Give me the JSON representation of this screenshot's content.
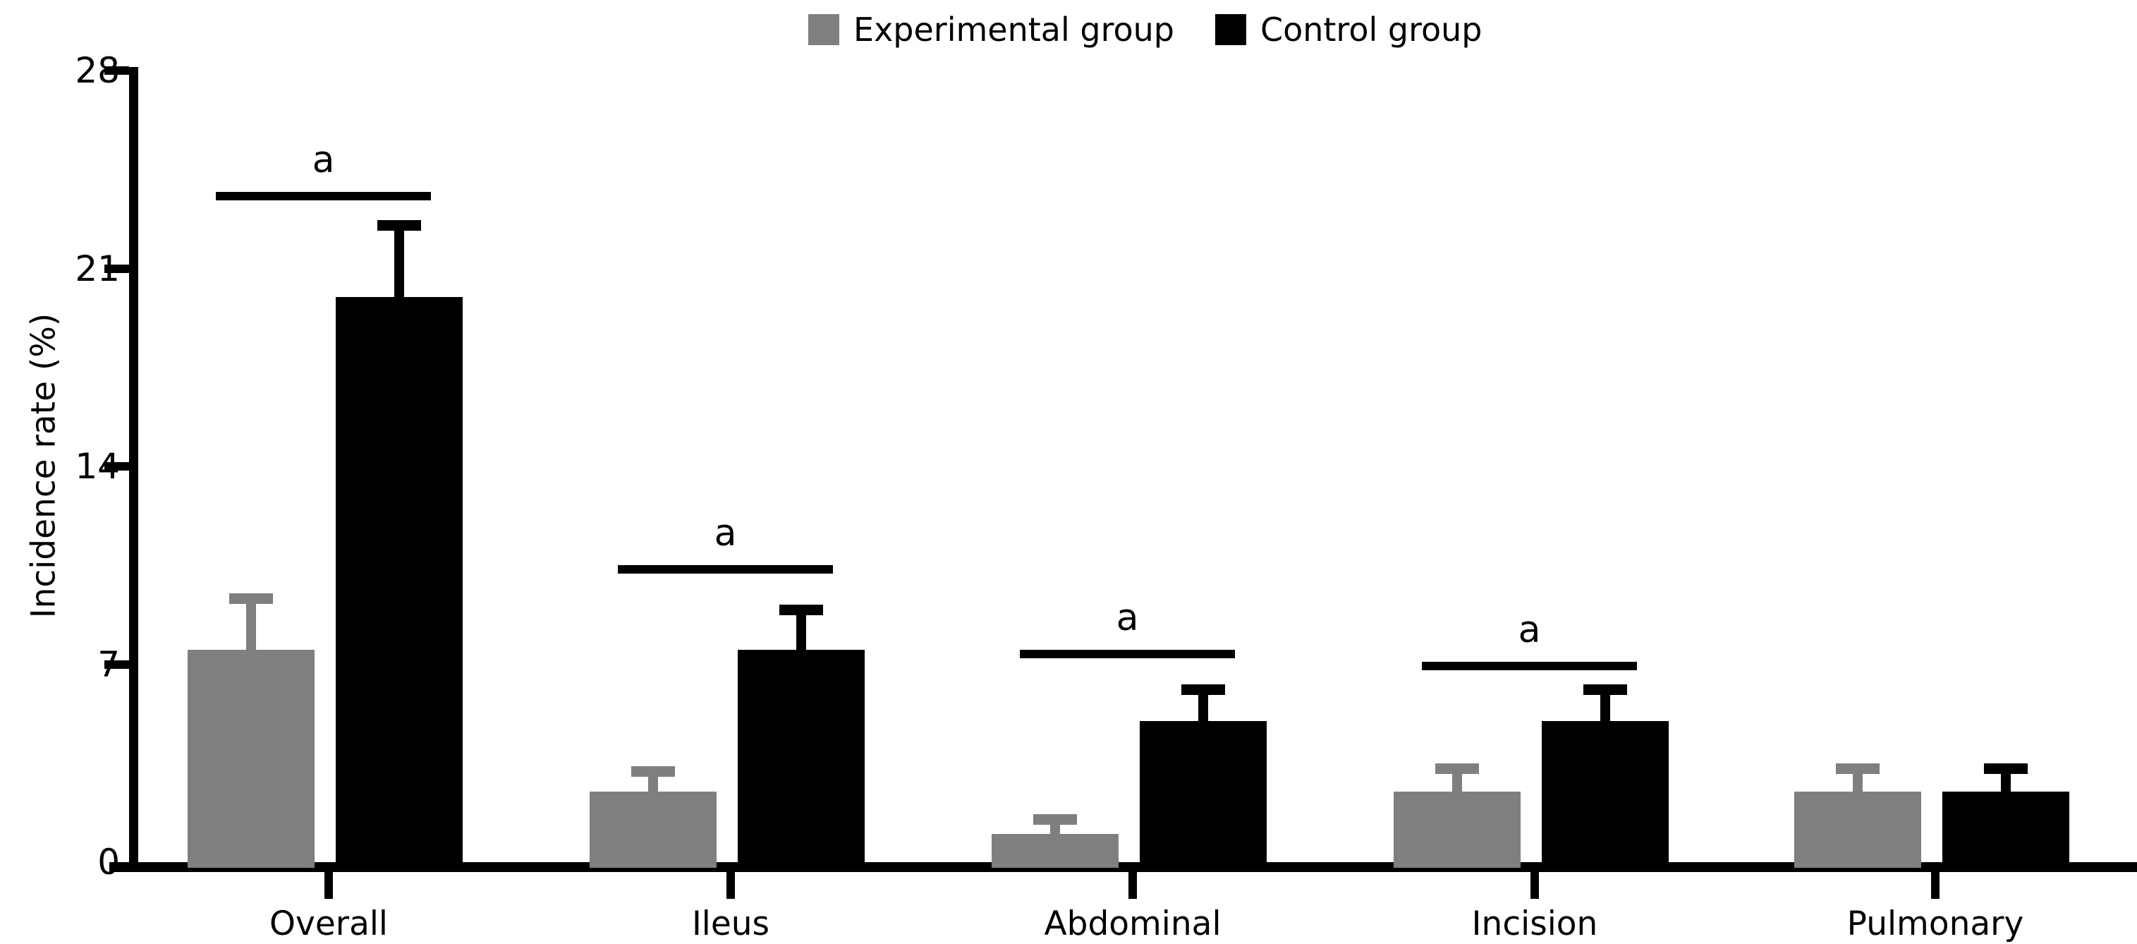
{
  "figure": {
    "background": "#ffffff",
    "text_color": "#000000"
  },
  "legend": {
    "position": "top-center",
    "items": [
      {
        "label": "Experimental group",
        "swatch": "gray-square",
        "color": "#7f7f7f"
      },
      {
        "label": "Control group",
        "swatch": "black-square",
        "color": "#000000"
      }
    ]
  },
  "chart_data": {
    "type": "bar",
    "title": "",
    "xlabel": "",
    "ylabel": "Incidence rate (%)",
    "ylim": [
      0,
      28
    ],
    "yticks": [
      0,
      7,
      14,
      21,
      28
    ],
    "grid": false,
    "legend_position": "top-center",
    "categories": [
      "Overall",
      "Ileus",
      "Abdominal",
      "Incision",
      "Pulmonary"
    ],
    "series": [
      {
        "name": "Experimental group",
        "color": "#7f7f7f",
        "values": [
          7.5,
          2.5,
          1.0,
          2.5,
          2.5
        ],
        "error_top": [
          9.5,
          3.4,
          1.7,
          3.5,
          3.5
        ]
      },
      {
        "name": "Control group",
        "color": "#000000",
        "values": [
          20.0,
          7.5,
          5.0,
          5.0,
          2.5
        ],
        "error_top": [
          22.7,
          9.1,
          6.3,
          6.3,
          3.5
        ]
      }
    ],
    "significance_brackets": [
      {
        "category": "Overall",
        "label": "a",
        "y": 23.7
      },
      {
        "category": "Ileus",
        "label": "a",
        "y": 10.5
      },
      {
        "category": "Abdominal",
        "label": "a",
        "y": 7.5
      },
      {
        "category": "Incision",
        "label": "a",
        "y": 7.1
      }
    ]
  }
}
